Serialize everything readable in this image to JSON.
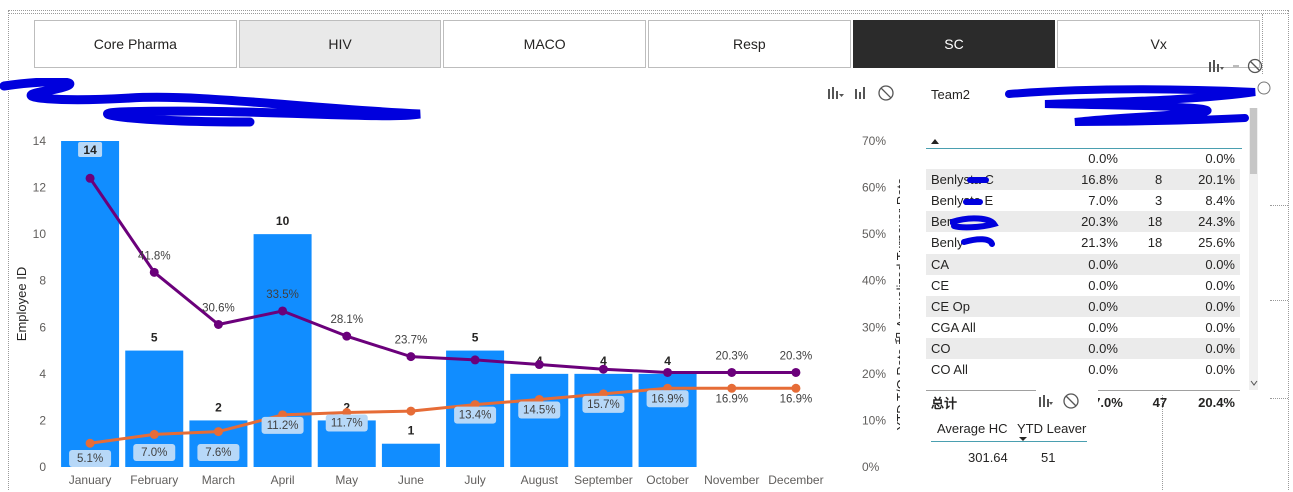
{
  "slicer": {
    "buttons": [
      {
        "label": "Core Pharma",
        "state": "normal"
      },
      {
        "label": "HIV",
        "state": "hover"
      },
      {
        "label": "MACO",
        "state": "normal"
      },
      {
        "label": "Resp",
        "state": "normal"
      },
      {
        "label": "SC",
        "state": "selected"
      },
      {
        "label": "Vx",
        "state": "normal"
      }
    ]
  },
  "colors": {
    "bar": "#118dff",
    "bar_label_bg": "#b7d8f8",
    "line_ytd": "#6b007b",
    "line_annual": "#e66c37",
    "accent": "#118dff"
  },
  "chart_data": {
    "type": "bar",
    "categories": [
      "January",
      "February",
      "March",
      "April",
      "May",
      "June",
      "July",
      "August",
      "September",
      "October",
      "November",
      "December"
    ],
    "series": [
      {
        "type": "bar",
        "values": [
          14,
          5,
          2,
          10,
          2,
          1,
          5,
          4,
          4,
          4,
          null,
          null
        ]
      },
      {
        "type": "line",
        "axis": "right",
        "values": [
          62,
          41.8,
          30.6,
          33.5,
          28.1,
          23.7,
          23,
          22,
          21,
          20.3,
          20.3,
          20.3
        ],
        "labels": [
          "",
          "41.8%",
          "30.6%",
          "33.5%",
          "28.1%",
          "23.7%",
          "",
          "",
          "",
          "",
          "20.3%",
          "20.3%"
        ]
      },
      {
        "type": "line",
        "axis": "right",
        "values": [
          5.1,
          7.0,
          7.6,
          11.2,
          11.7,
          12,
          13.4,
          14.5,
          15.7,
          16.9,
          16.9,
          16.9
        ],
        "labels": [
          "5.1%",
          "7.0%",
          "7.6%",
          "11.2%",
          "11.7%",
          "",
          "13.4%",
          "14.5%",
          "15.7%",
          "16.9%",
          "16.9%",
          "16.9%"
        ]
      }
    ],
    "bar_labels": [
      "14",
      "5",
      "2",
      "10",
      "2",
      "1",
      "5",
      "4",
      "4",
      "4",
      "",
      ""
    ],
    "ylabel": "Employee ID",
    "y2label": "YTD T/O Rate 和 Annualized Turnover Rate",
    "ylim": [
      0,
      14
    ],
    "y_ticks": [
      "0",
      "2",
      "4",
      "6",
      "8",
      "10",
      "12",
      "14"
    ],
    "y2lim": [
      0,
      70
    ],
    "y2_ticks": [
      "0%",
      "10%",
      "20%",
      "30%",
      "40%",
      "50%",
      "60%",
      "70%"
    ],
    "grid": false,
    "legend": "top-left"
  },
  "table": {
    "header": "Team2",
    "rows": [
      {
        "name": "",
        "v1": "0.0%",
        "v2": "",
        "v3": "0.0%",
        "shade": false
      },
      {
        "name": "Benlysta C",
        "v1": "16.8%",
        "v2": "8",
        "v3": "20.1%",
        "shade": true
      },
      {
        "name": "Benlysta E",
        "v1": "7.0%",
        "v2": "3",
        "v3": "8.4%",
        "shade": false
      },
      {
        "name": "Ben",
        "v1": "20.3%",
        "v2": "18",
        "v3": "24.3%",
        "shade": true
      },
      {
        "name": "Benly",
        "v1": "21.3%",
        "v2": "18",
        "v3": "25.6%",
        "shade": false
      },
      {
        "name": "CA",
        "v1": "0.0%",
        "v2": "",
        "v3": "0.0%",
        "shade": true
      },
      {
        "name": "CE",
        "v1": "0.0%",
        "v2": "",
        "v3": "0.0%",
        "shade": false
      },
      {
        "name": "CE Op",
        "v1": "0.0%",
        "v2": "",
        "v3": "0.0%",
        "shade": true
      },
      {
        "name": "CGA All",
        "v1": "0.0%",
        "v2": "",
        "v3": "0.0%",
        "shade": false
      },
      {
        "name": "CO",
        "v1": "0.0%",
        "v2": "",
        "v3": "0.0%",
        "shade": true
      },
      {
        "name": "CO All",
        "v1": "0.0%",
        "v2": "",
        "v3": "0.0%",
        "shade": false
      }
    ],
    "total": {
      "label": "总计",
      "v1": "7.0%",
      "v2": "47",
      "v3": "20.4%"
    }
  },
  "card": {
    "col1_label": "Average HC",
    "col2_label": "YTD Leaver",
    "col1_value": "301.64",
    "col2_value": "51"
  }
}
